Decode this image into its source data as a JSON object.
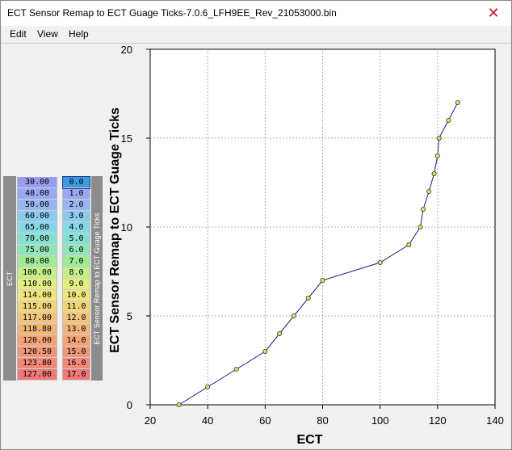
{
  "window": {
    "title": "ECT Sensor Remap to ECT Guage Ticks-7.0.6_LFH9EE_Rev_21053000.bin",
    "close_glyph": "✕"
  },
  "menu": [
    {
      "label": "Edit"
    },
    {
      "label": "View"
    },
    {
      "label": "Help"
    }
  ],
  "table": {
    "row_axis_label": "ECT",
    "value_axis_label": "ECT Sensor Remap to ECT Guage Ticks",
    "ect": [
      "30.00",
      "40.00",
      "50.00",
      "60.00",
      "65.00",
      "70.00",
      "75.00",
      "80.00",
      "100.00",
      "110.00",
      "114.00",
      "115.00",
      "117.00",
      "118.80",
      "120.00",
      "120.50",
      "123.80",
      "127.00"
    ],
    "values": [
      "0.0",
      "1.0",
      "2.0",
      "3.0",
      "4.0",
      "5.0",
      "6.0",
      "7.0",
      "8.0",
      "9.0",
      "10.0",
      "11.0",
      "12.0",
      "13.0",
      "14.0",
      "15.0",
      "16.0",
      "17.0"
    ],
    "colors": [
      "#9a9cf0",
      "#9aa8f2",
      "#98b6f0",
      "#8ccaef",
      "#86d8e8",
      "#86e0d0",
      "#8ee6b8",
      "#a0ea98",
      "#c4ee88",
      "#e2ee80",
      "#f0e47c",
      "#f2d47a",
      "#f2c47a",
      "#f2b478",
      "#f2a478",
      "#f29678",
      "#f28878",
      "#f07878"
    ],
    "selected_value_color": "#3a9ae0"
  },
  "chart_data": {
    "type": "line",
    "xlabel": "ECT",
    "ylabel": "ECT Sensor Remap to ECT Guage Ticks",
    "xlim": [
      20,
      140
    ],
    "ylim": [
      0,
      20
    ],
    "xticks": [
      "20",
      "40",
      "60",
      "80",
      "100",
      "120",
      "140"
    ],
    "yticks": [
      "0",
      "5",
      "10",
      "15",
      "20"
    ],
    "grid": true,
    "line_color": "#1a1a8a",
    "marker_color": "#e8e060",
    "series": [
      {
        "x": [
          30,
          40,
          50,
          60,
          65,
          70,
          75,
          80,
          100,
          110,
          114,
          115,
          117,
          118.8,
          120,
          120.5,
          123.8,
          127
        ],
        "y": [
          0,
          1,
          2,
          3,
          4,
          5,
          6,
          7,
          8,
          9,
          10,
          11,
          12,
          13,
          14,
          15,
          16,
          17
        ]
      }
    ]
  }
}
